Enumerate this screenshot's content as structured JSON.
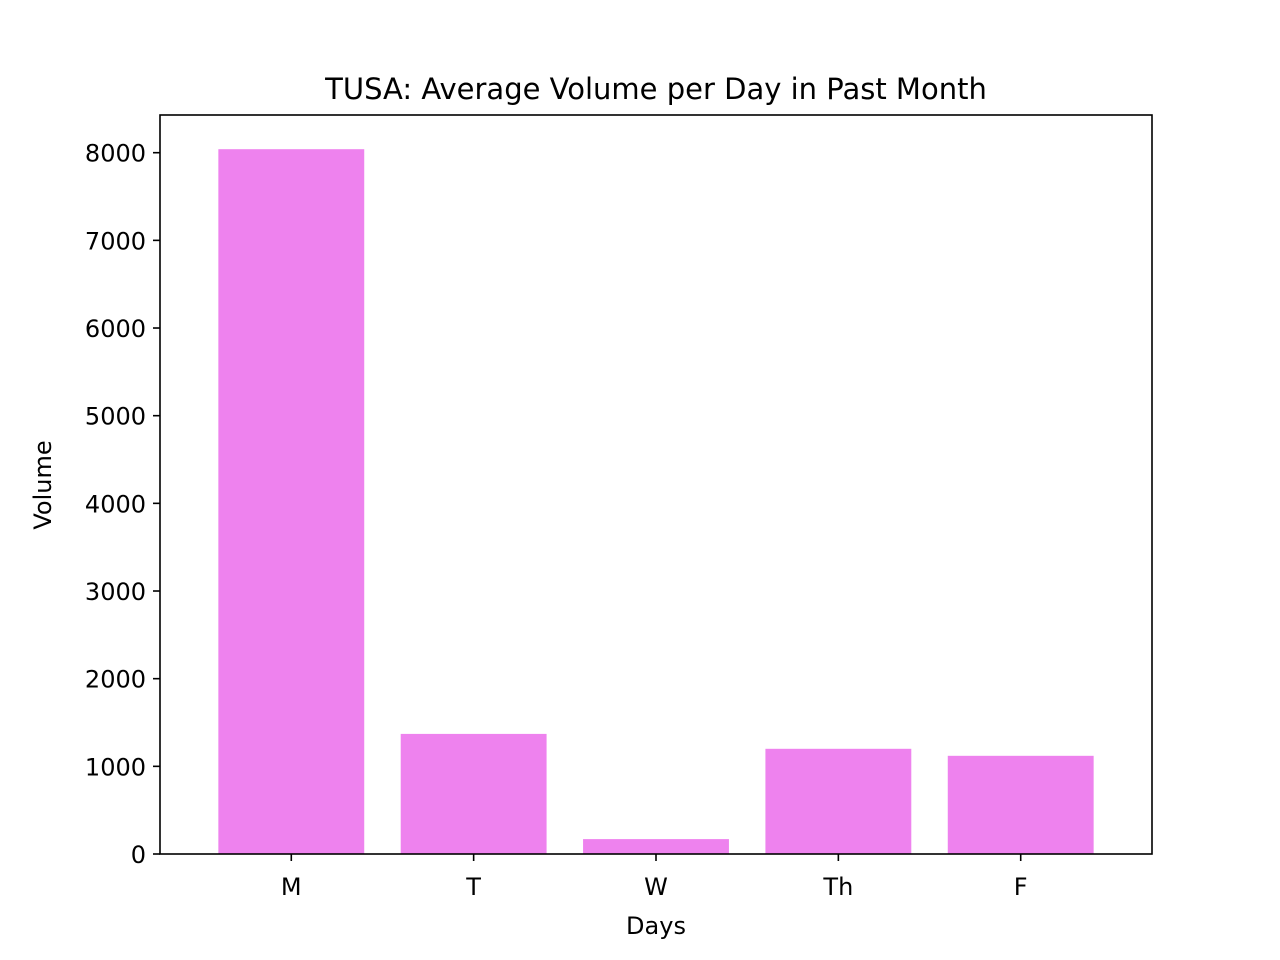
{
  "chart_data": {
    "type": "bar",
    "title": "TUSA: Average Volume per Day in Past Month",
    "xlabel": "Days",
    "ylabel": "Volume",
    "categories": [
      "M",
      "T",
      "W",
      "Th",
      "F"
    ],
    "values": [
      8040,
      1370,
      170,
      1200,
      1120
    ],
    "ylim": [
      0,
      8430
    ],
    "yticks": [
      0,
      1000,
      2000,
      3000,
      4000,
      5000,
      6000,
      7000,
      8000
    ],
    "ytick_labels": [
      "0",
      "1000",
      "2000",
      "3000",
      "4000",
      "5000",
      "6000",
      "7000",
      "8000"
    ],
    "bar_color": "#ee82ee",
    "grid": false,
    "legend": "none"
  }
}
